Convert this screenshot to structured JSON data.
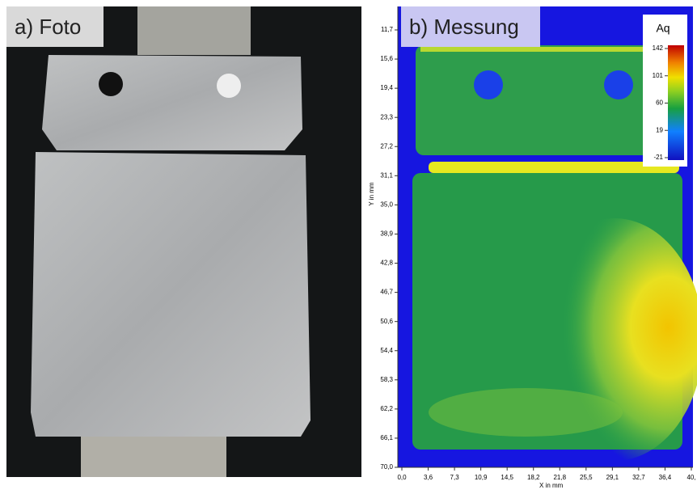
{
  "panels": [
    {
      "label": "a) Foto"
    },
    {
      "label": "b) Messung",
      "x_axis": {
        "title": "X in mm",
        "ticks": [
          "0,0",
          "3,6",
          "7,3",
          "10,9",
          "14,5",
          "18,2",
          "21,8",
          "25,5",
          "29,1",
          "32,7",
          "36,4",
          "40,"
        ]
      },
      "y_axis": {
        "title": "Y in mm",
        "ticks": [
          "11,7",
          "15,6",
          "19,4",
          "23,3",
          "27,2",
          "31,1",
          "35,0",
          "38,9",
          "42,8",
          "46,7",
          "50,6",
          "54,4",
          "58,3",
          "62,2",
          "66,1",
          "70,0"
        ]
      },
      "colorbar": {
        "title": "Aq",
        "ticks": [
          "142",
          "101",
          "60",
          "19",
          "-21"
        ]
      }
    }
  ]
}
